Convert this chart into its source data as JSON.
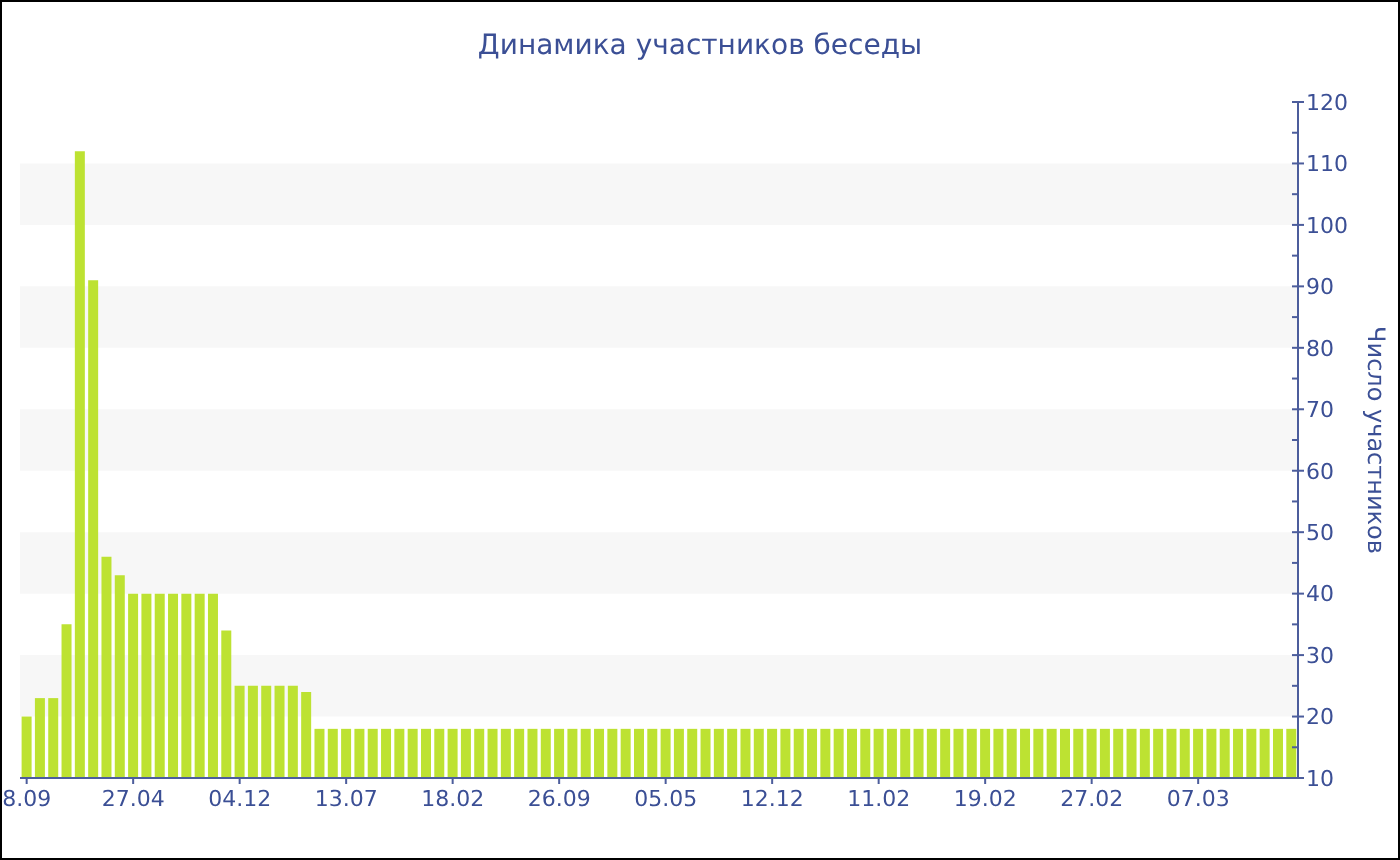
{
  "chart_data": {
    "type": "bar",
    "title": "Динамика участников беседы",
    "ylabel": "Число участников",
    "color": "#bde232",
    "bands": [
      {
        "axis": "y",
        "from": 20,
        "to": 30,
        "color": "#f7f7f7"
      },
      {
        "axis": "y",
        "from": 40,
        "to": 50,
        "color": "#f7f7f7"
      },
      {
        "axis": "y",
        "from": 60,
        "to": 70,
        "color": "#f7f7f7"
      },
      {
        "axis": "y",
        "from": 80,
        "to": 90,
        "color": "#f7f7f7"
      },
      {
        "axis": "y",
        "from": 100,
        "to": 110,
        "color": "#f7f7f7"
      }
    ],
    "categories": [
      "8.09",
      null,
      null,
      null,
      null,
      null,
      null,
      null,
      "27.04",
      null,
      null,
      null,
      null,
      null,
      null,
      null,
      "04.12",
      null,
      null,
      null,
      null,
      null,
      null,
      null,
      "13.07",
      null,
      null,
      null,
      null,
      null,
      null,
      null,
      "18.02",
      null,
      null,
      null,
      null,
      null,
      null,
      null,
      "26.09",
      null,
      null,
      null,
      null,
      null,
      null,
      null,
      "05.05",
      null,
      null,
      null,
      null,
      null,
      null,
      null,
      "12.12",
      null,
      null,
      null,
      null,
      null,
      null,
      null,
      "11.02",
      null,
      null,
      null,
      null,
      null,
      null,
      null,
      "19.02",
      null,
      null,
      null,
      null,
      null,
      null,
      null,
      "27.02",
      null,
      null,
      null,
      null,
      null,
      null,
      null,
      "07.03",
      null,
      null,
      null,
      null,
      null,
      null,
      null
    ],
    "values": [
      20,
      23,
      23,
      35,
      112,
      91,
      46,
      43,
      40,
      40,
      40,
      40,
      40,
      40,
      40,
      34,
      25,
      25,
      25,
      25,
      25,
      24,
      18,
      18,
      18,
      18,
      18,
      18,
      18,
      18,
      18,
      18,
      18,
      18,
      18,
      18,
      18,
      18,
      18,
      18,
      18,
      18,
      18,
      18,
      18,
      18,
      18,
      18,
      18,
      18,
      18,
      18,
      18,
      18,
      18,
      18,
      18,
      18,
      18,
      18,
      18,
      18,
      18,
      18,
      18,
      18,
      18,
      18,
      18,
      18,
      18,
      18,
      18,
      18,
      18,
      18,
      18,
      18,
      18,
      18,
      18,
      18,
      18,
      18,
      18,
      18,
      18,
      18,
      18,
      18,
      18,
      18,
      18,
      18,
      18,
      18
    ],
    "ylim": [
      10,
      120
    ],
    "yticks": [
      10,
      {
        "value": 15,
        "label": null
      },
      20,
      {
        "value": 25,
        "label": null
      },
      30,
      {
        "value": 35,
        "label": null
      },
      40,
      {
        "value": 45,
        "label": null
      },
      50,
      {
        "value": 55,
        "label": null
      },
      60,
      {
        "value": 65,
        "label": null
      },
      70,
      {
        "value": 75,
        "label": null
      },
      80,
      {
        "value": 85,
        "label": null
      },
      90,
      {
        "value": 95,
        "label": null
      },
      100,
      {
        "value": 105,
        "label": null
      },
      110,
      {
        "value": 115,
        "label": null
      },
      120
    ]
  }
}
